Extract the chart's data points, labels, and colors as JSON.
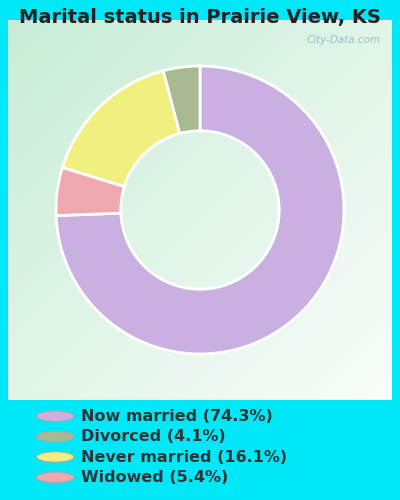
{
  "title": "Marital status in Prairie View, KS",
  "slices": [
    74.3,
    5.4,
    16.1,
    4.1
  ],
  "colors": [
    "#c9b0e0",
    "#f0a8b0",
    "#f0f080",
    "#a8b890"
  ],
  "labels": [
    "Now married (74.3%)",
    "Divorced (4.1%)",
    "Never married (16.1%)",
    "Widowed (5.4%)"
  ],
  "legend_colors": [
    "#c9b0e0",
    "#a8b890",
    "#f0f080",
    "#f0a8b0"
  ],
  "legend_labels": [
    "Now married (74.3%)",
    "Divorced (4.1%)",
    "Never married (16.1%)",
    "Widowed (5.4%)"
  ],
  "bg_cyan": "#00e8f8",
  "bg_chart_tl": "#c8e8d0",
  "bg_chart_br": "#e8f8f0",
  "watermark": "City-Data.com",
  "title_fontsize": 14,
  "legend_fontsize": 11.5,
  "donut_width": 0.45
}
